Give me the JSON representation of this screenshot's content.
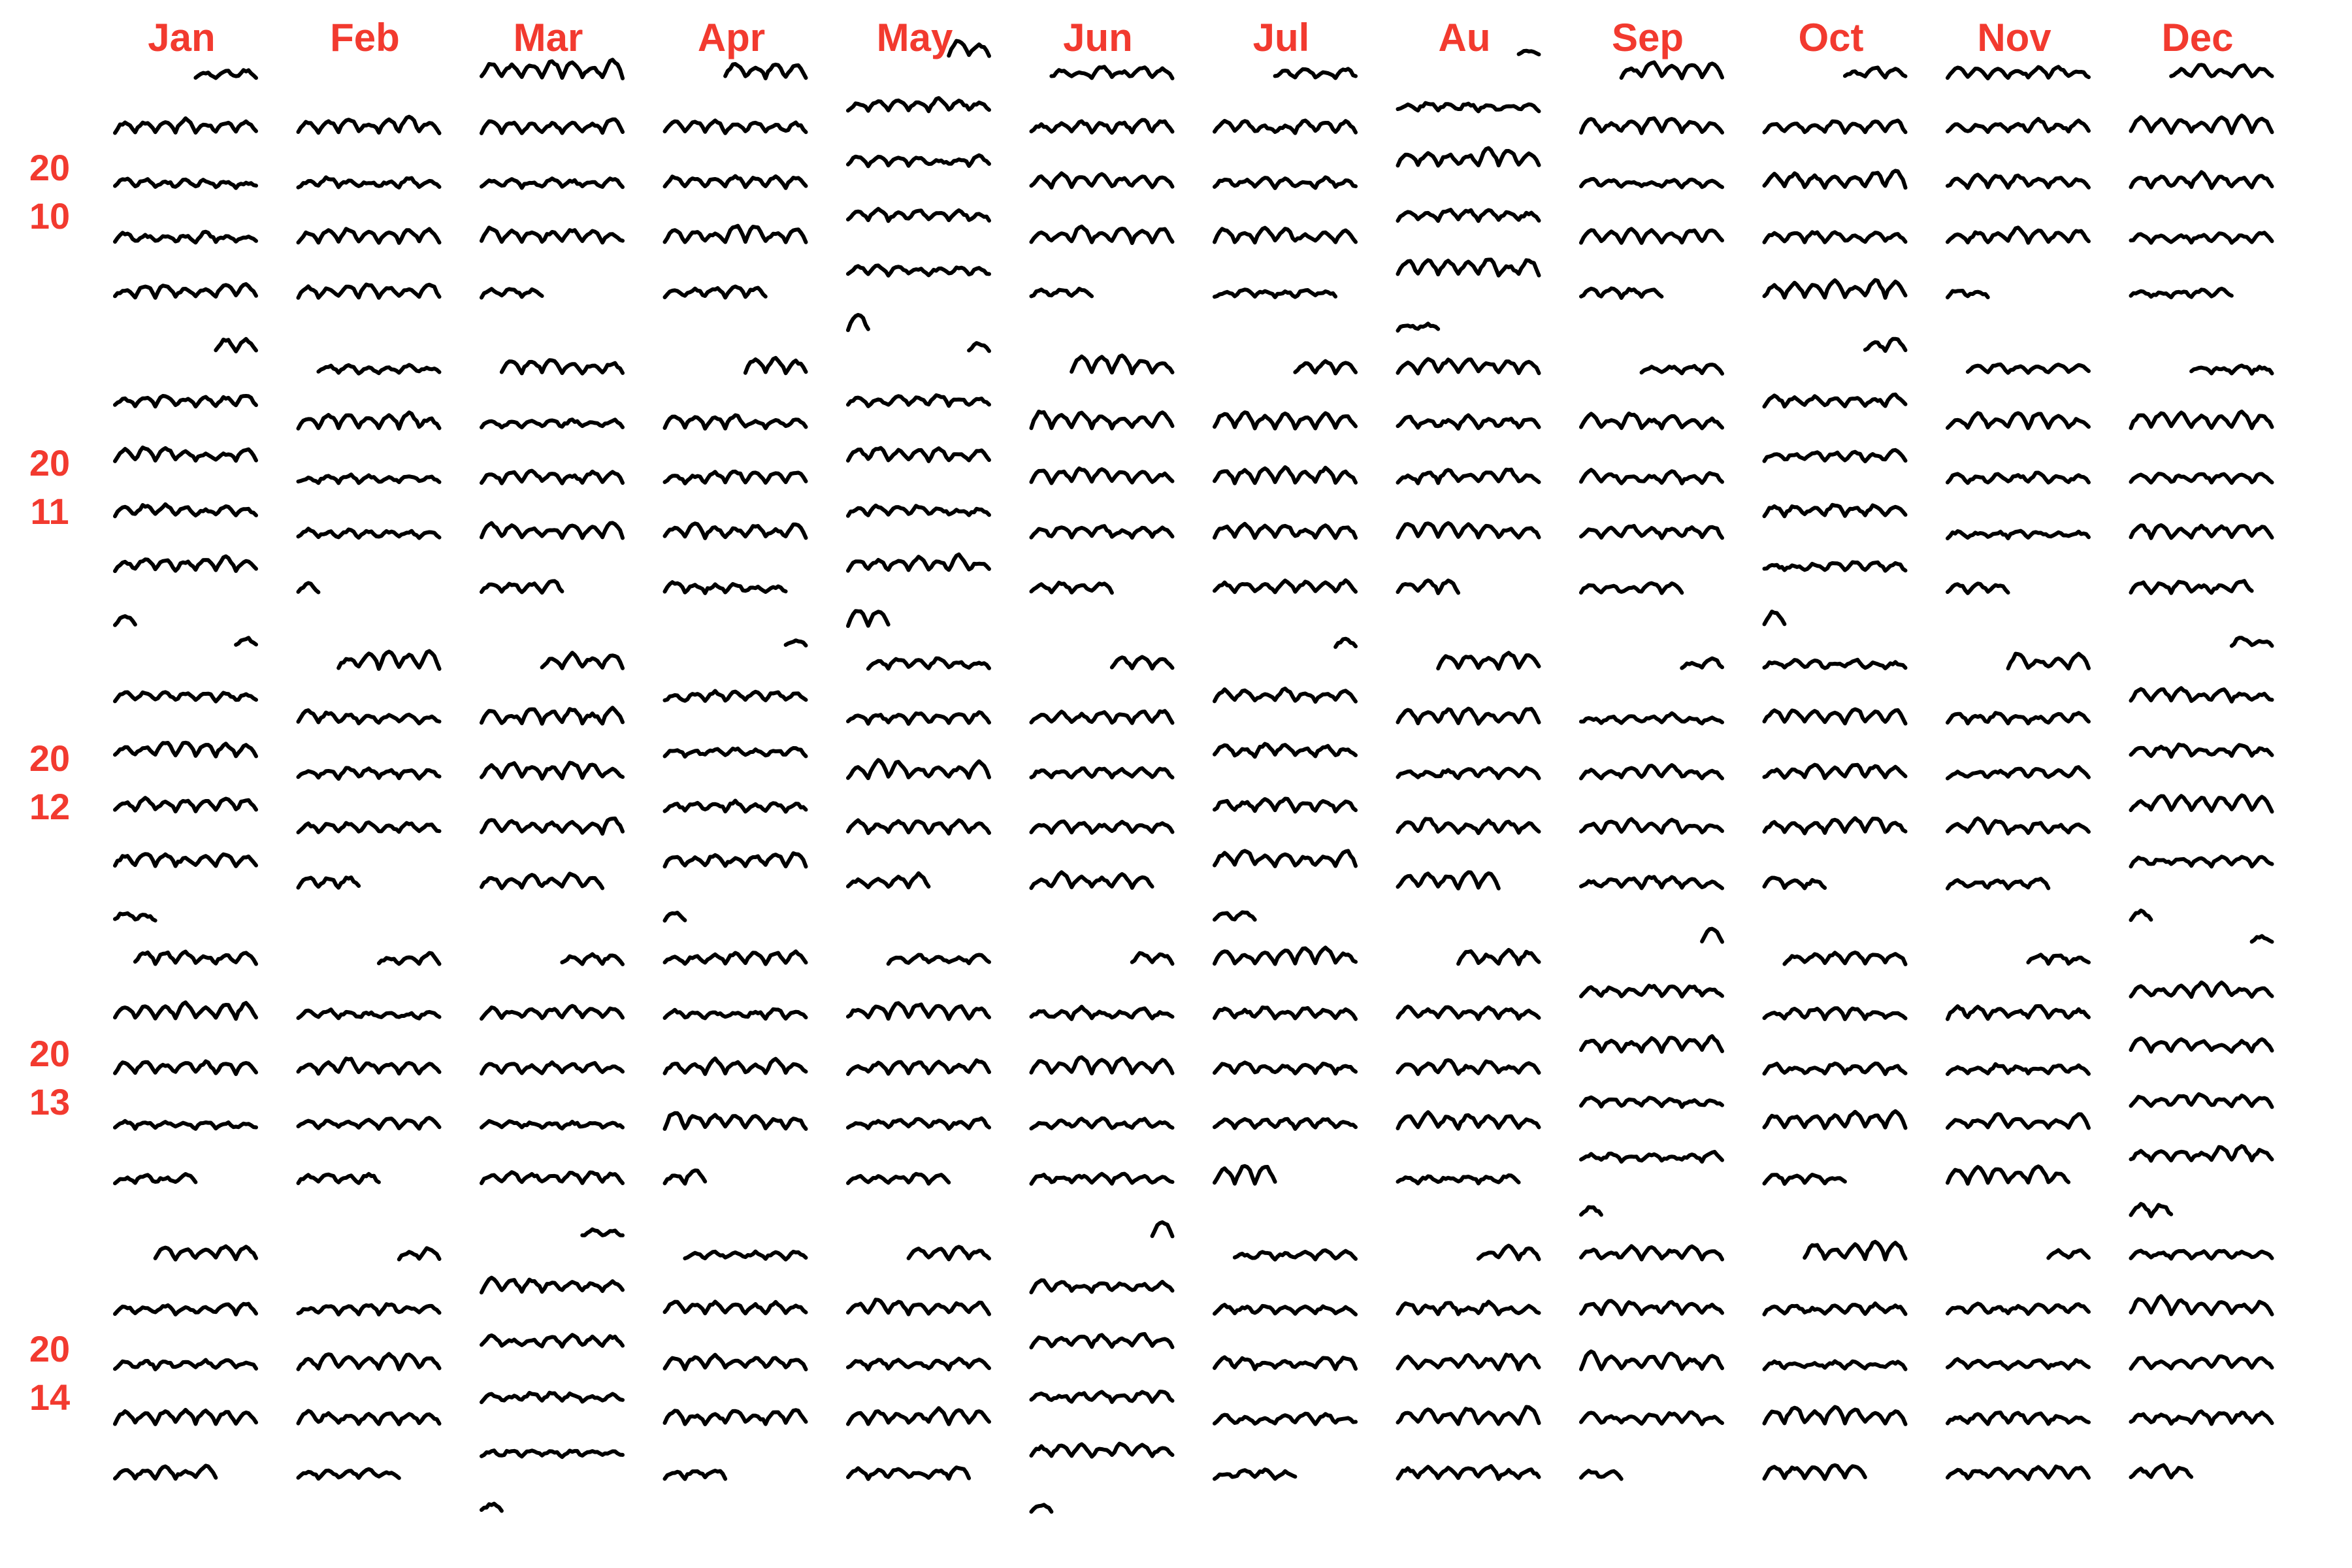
{
  "chart_data": {
    "type": "line",
    "title": "",
    "xlabel": "",
    "ylabel": "",
    "months": [
      "Jan",
      "Feb",
      "Mar",
      "Apr",
      "May",
      "Jun",
      "Jul",
      "Au",
      "Sep",
      "Oct",
      "Nov",
      "Dec"
    ],
    "year_rows": [
      {
        "year": 2010,
        "label_top": "20",
        "label_bottom": "10"
      },
      {
        "year": 2011,
        "label_top": "20",
        "label_bottom": "11"
      },
      {
        "year": 2012,
        "label_top": "20",
        "label_bottom": "12"
      },
      {
        "year": 2013,
        "label_top": "20",
        "label_bottom": "13"
      },
      {
        "year": 2014,
        "label_top": "20",
        "label_bottom": "14"
      }
    ],
    "encoding": "Calendar grid of hourly sparklines: one row per week, each line spans Monday to Sunday for the days of that week that fall in the month",
    "colors": {
      "labels": "#f23a2f",
      "lines": "#000000"
    },
    "grid": false,
    "legend": "none"
  }
}
